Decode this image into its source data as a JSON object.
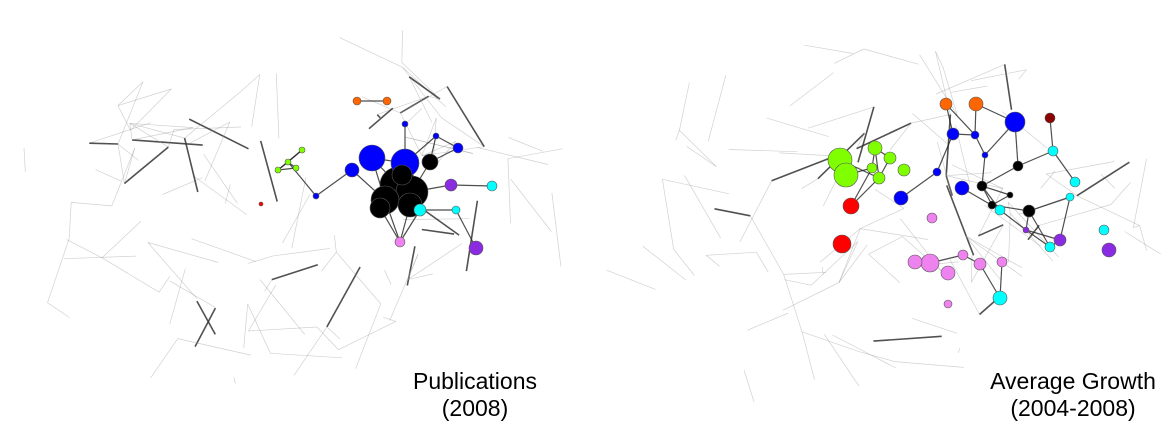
{
  "panels": [
    {
      "caption_line1": "Publications",
      "caption_line2": "(2008)",
      "seed": 7,
      "highlight_colors": [
        "#0000ff",
        "#000000",
        "#80ff00",
        "#8a2be2",
        "#00ffff",
        "#ee82ee",
        "#ff6600",
        "#ff0000"
      ]
    },
    {
      "caption_line1": "Average Growth",
      "caption_line2": "(2004-2008)",
      "seed": 11,
      "highlight_colors": [
        "#80ff00",
        "#ff0000",
        "#0000ff",
        "#000000",
        "#00ffff",
        "#ee82ee",
        "#8a2be2",
        "#ff6600",
        "#8b0000"
      ]
    }
  ]
}
